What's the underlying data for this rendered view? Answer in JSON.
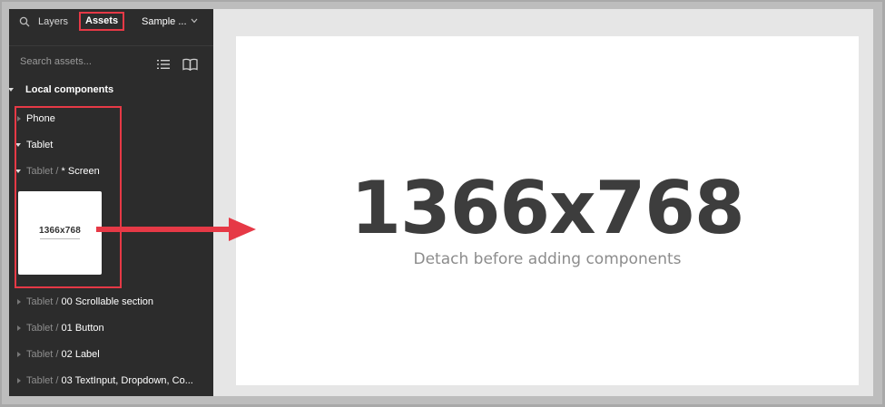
{
  "sidebar": {
    "tabs": {
      "layers": "Layers",
      "assets": "Assets",
      "page": "Sample ..."
    },
    "search": {
      "placeholder": "Search assets..."
    },
    "section_title": "Local components",
    "items": [
      {
        "prefix": "",
        "label": "Phone",
        "expanded": false
      },
      {
        "prefix": "",
        "label": "Tablet",
        "expanded": true
      },
      {
        "prefix": "Tablet / ",
        "label": "* Screen",
        "expanded": true
      },
      {
        "prefix": "Tablet / ",
        "label": "00 Scrollable section",
        "expanded": false
      },
      {
        "prefix": "Tablet / ",
        "label": "01 Button",
        "expanded": false
      },
      {
        "prefix": "Tablet / ",
        "label": "02 Label",
        "expanded": false
      },
      {
        "prefix": "Tablet / ",
        "label": "03 TextInput, Dropdown, Co...",
        "expanded": false
      }
    ],
    "thumbnail_text": "1366x768"
  },
  "canvas": {
    "resolution": "1366x768",
    "subtitle": "Detach before adding components"
  },
  "colors": {
    "highlight": "#e63946",
    "sidebar_bg": "#2c2c2c",
    "canvas_bg": "#e6e6e6"
  }
}
